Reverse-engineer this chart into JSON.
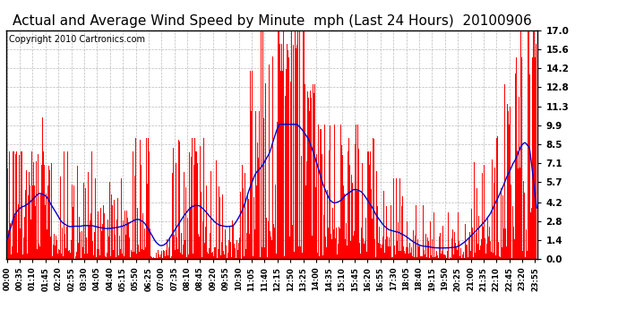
{
  "title": "Actual and Average Wind Speed by Minute  mph (Last 24 Hours)  20100906",
  "copyright": "Copyright 2010 Cartronics.com",
  "yticks": [
    0.0,
    1.4,
    2.8,
    4.2,
    5.7,
    7.1,
    8.5,
    9.9,
    11.3,
    12.8,
    14.2,
    15.6,
    17.0
  ],
  "ymax": 17.0,
  "bar_color": "#ff0000",
  "line_color": "#0000cc",
  "bg_color": "#ffffff",
  "grid_color": "#aaaaaa",
  "title_fontsize": 11,
  "copyright_fontsize": 7
}
